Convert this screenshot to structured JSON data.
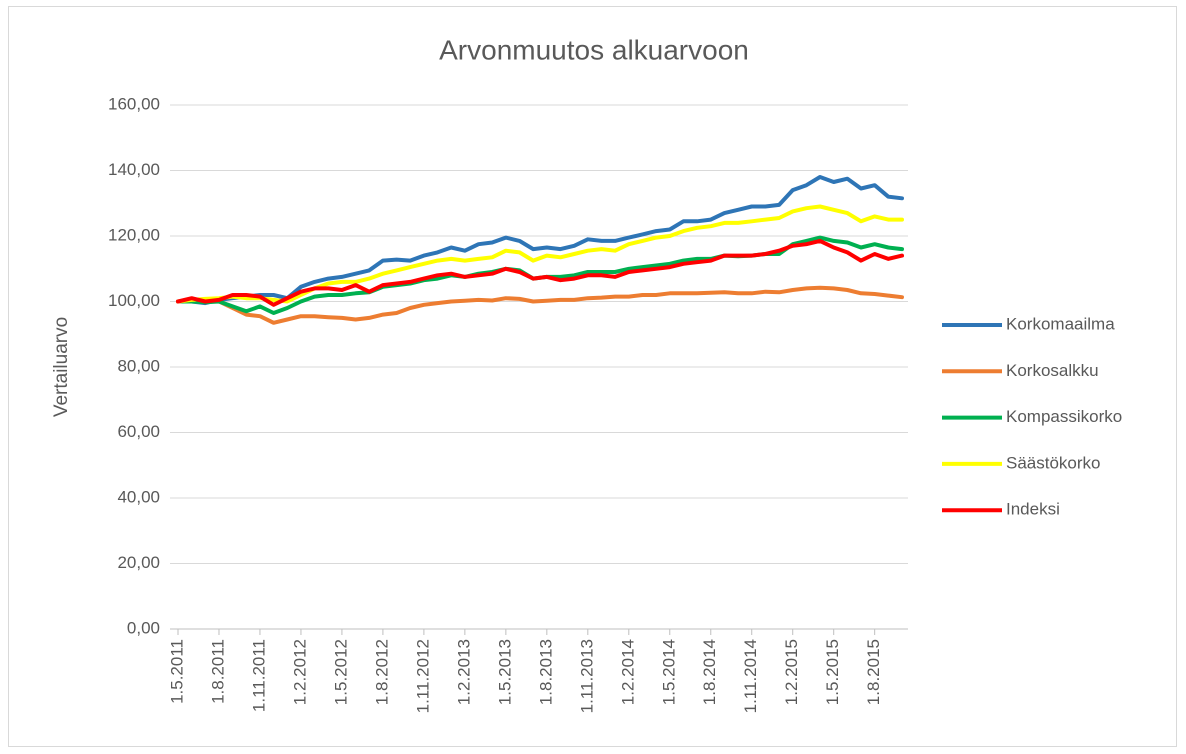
{
  "chart_data": {
    "type": "line",
    "title": "Arvonmuutos alkuarvoon",
    "y_label": "Vertailuarvo",
    "categories": [
      "1.5.2011",
      null,
      null,
      "1.8.2011",
      null,
      null,
      "1.11.2011",
      null,
      null,
      "1.2.2012",
      null,
      null,
      "1.5.2012",
      null,
      null,
      "1.8.2012",
      null,
      null,
      "1.11.2012",
      null,
      null,
      "1.2.2013",
      null,
      null,
      "1.5.2013",
      null,
      null,
      "1.8.2013",
      null,
      null,
      "1.11.2013",
      null,
      null,
      "1.2.2014",
      null,
      null,
      "1.5.2014",
      null,
      null,
      "1.8.2014",
      null,
      null,
      "1.11.2014",
      null,
      null,
      "1.2.2015",
      null,
      null,
      "1.5.2015",
      null,
      null,
      "1.8.2015",
      null,
      null
    ],
    "series": [
      {
        "name": "Korkomaailma",
        "color": "#2e75b6",
        "values": [
          100,
          100,
          99.5,
          100.5,
          101,
          101.5,
          102,
          102,
          101,
          104.5,
          106,
          107,
          107.5,
          108.5,
          109.5,
          112.5,
          112.8,
          112.5,
          114,
          115,
          116.5,
          115.5,
          117.5,
          118,
          119.5,
          118.5,
          116,
          116.5,
          116,
          117,
          119,
          118.5,
          118.5,
          119.5,
          120.5,
          121.5,
          122,
          124.5,
          124.5,
          125,
          127,
          128,
          129,
          129,
          129.5,
          134,
          135.5,
          138,
          136.5,
          137.5,
          134.5,
          135.5,
          132,
          131.5
        ]
      },
      {
        "name": "Korkosalkku",
        "color": "#ed7d31",
        "values": [
          100,
          100.5,
          100,
          100,
          98,
          96,
          95.5,
          93.5,
          94.5,
          95.5,
          95.5,
          95.2,
          95,
          94.5,
          95,
          96,
          96.5,
          98,
          99,
          99.5,
          100,
          100.2,
          100.5,
          100.3,
          101,
          100.8,
          100,
          100.2,
          100.5,
          100.5,
          101,
          101.2,
          101.5,
          101.5,
          102,
          102,
          102.5,
          102.5,
          102.5,
          102.7,
          102.8,
          102.5,
          102.5,
          103,
          102.8,
          103.5,
          104,
          104.2,
          104,
          103.5,
          102.5,
          102.3,
          101.8,
          101.3
        ]
      },
      {
        "name": "Kompassikorko",
        "color": "#00b050",
        "values": [
          100,
          100,
          99.8,
          100,
          98.5,
          97,
          98.5,
          96.5,
          98,
          100,
          101.5,
          102,
          102,
          102.5,
          102.8,
          104.5,
          105,
          105.5,
          106.5,
          107,
          108,
          107.5,
          108.5,
          109,
          110,
          109.5,
          107,
          107.5,
          107.5,
          108,
          109,
          109,
          109,
          110,
          110.5,
          111,
          111.5,
          112.5,
          113,
          113,
          114,
          113.8,
          114,
          114.5,
          114.5,
          117.5,
          118.5,
          119.5,
          118.5,
          118,
          116.5,
          117.5,
          116.5,
          116
        ]
      },
      {
        "name": "Säästökorko",
        "color": "#ffff00",
        "values": [
          100,
          100.5,
          100.8,
          101,
          101.5,
          101,
          101,
          100.5,
          100,
          102,
          104,
          105.5,
          106,
          106,
          107,
          108.5,
          109.5,
          110.5,
          111.5,
          112.5,
          113,
          112.5,
          113,
          113.5,
          115.5,
          115,
          112.5,
          114,
          113.5,
          114.5,
          115.5,
          116,
          115.5,
          117.5,
          118.5,
          119.5,
          120,
          121.5,
          122.5,
          123,
          124,
          124,
          124.5,
          125,
          125.5,
          127.5,
          128.5,
          129,
          128,
          127,
          124.5,
          126,
          125,
          125
        ]
      },
      {
        "name": "Indeksi",
        "color": "#ff0000",
        "values": [
          100,
          101,
          100,
          100.5,
          102,
          102,
          101.5,
          99,
          101,
          103,
          104,
          104,
          103.5,
          105,
          103,
          105,
          105.5,
          106,
          107,
          108,
          108.5,
          107.5,
          108,
          108.5,
          110,
          109,
          107,
          107.5,
          106.5,
          107,
          108,
          108,
          107.5,
          109,
          109.5,
          110,
          110.5,
          111.5,
          112,
          112.5,
          114,
          114,
          114,
          114.5,
          115.5,
          117,
          117.5,
          118.5,
          116.5,
          115,
          112.5,
          114.5,
          113,
          114
        ]
      }
    ],
    "ylim": [
      0,
      160
    ],
    "yticks": [
      {
        "value": 0,
        "label": "0,00"
      },
      {
        "value": 20,
        "label": "20,00"
      },
      {
        "value": 40,
        "label": "40,00"
      },
      {
        "value": 60,
        "label": "60,00"
      },
      {
        "value": 80,
        "label": "80,00"
      },
      {
        "value": 100,
        "label": "100,00"
      },
      {
        "value": 120,
        "label": "120,00"
      },
      {
        "value": 140,
        "label": "140,00"
      },
      {
        "value": 160,
        "label": "160,00"
      }
    ],
    "grid": true,
    "legend": "right"
  }
}
